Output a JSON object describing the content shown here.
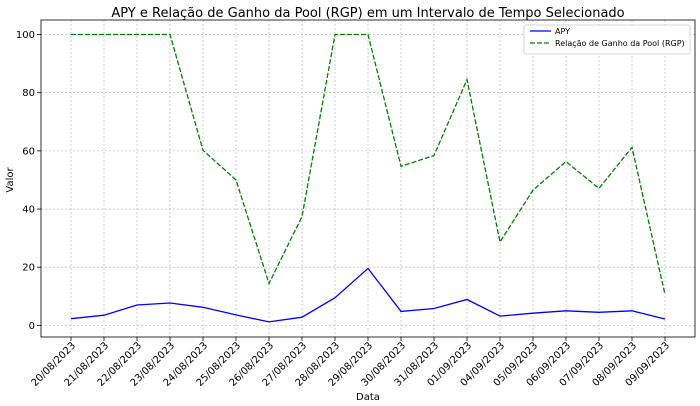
{
  "chart_data": {
    "type": "line",
    "title": "APY e Relação de Ganho da Pool (RGP) em um Intervalo de Tempo Selecionado",
    "xlabel": "Data",
    "ylabel": "Valor",
    "ylim": [
      -4,
      105
    ],
    "yticks": [
      0,
      20,
      40,
      60,
      80,
      100
    ],
    "grid": true,
    "legend_position": "top-right",
    "categories": [
      "20/08/2023",
      "21/08/2023",
      "22/08/2023",
      "23/08/2023",
      "24/08/2023",
      "25/08/2023",
      "26/08/2023",
      "27/08/2023",
      "28/08/2023",
      "29/08/2023",
      "30/08/2023",
      "31/08/2023",
      "01/09/2023",
      "04/09/2023",
      "05/09/2023",
      "06/09/2023",
      "07/09/2023",
      "08/09/2023",
      "09/09/2023"
    ],
    "series": [
      {
        "name": "APY",
        "color": "#0000ff",
        "style": "solid",
        "values": [
          2.3,
          3.5,
          7.0,
          7.7,
          6.2,
          3.6,
          1.2,
          2.8,
          9.5,
          19.6,
          4.8,
          5.8,
          8.9,
          3.2,
          4.2,
          5.0,
          4.5,
          5.0,
          2.2
        ]
      },
      {
        "name": "Relação de Ganho da Pool (RGP)",
        "color": "#008000",
        "style": "dashed",
        "values": [
          100,
          100,
          100,
          100,
          60.2,
          50.0,
          14.4,
          37.4,
          100,
          100,
          54.7,
          58.4,
          84.5,
          28.7,
          46.5,
          56.3,
          47.1,
          61.2,
          10.6
        ]
      }
    ]
  }
}
